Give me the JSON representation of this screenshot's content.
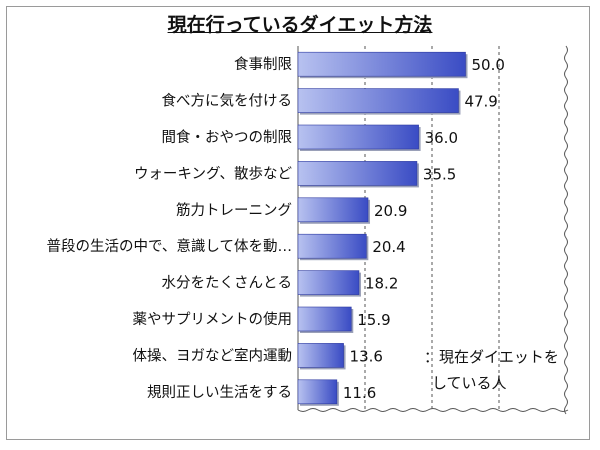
{
  "chart_data": {
    "type": "bar",
    "orientation": "horizontal",
    "title": "現在行っているダイエット方法",
    "categories": [
      "食事制限",
      "食べ方に気を付ける",
      "間食・おやつの制限",
      "ウォーキング、散歩など",
      "筋力トレーニング",
      "普段の生活の中で、意識して体を動…",
      "水分をたくさんとる",
      "薬やサプリメントの使用",
      "体操、ヨガなど室内運動",
      "規則正しい生活をする"
    ],
    "values": [
      50.0,
      47.9,
      36.0,
      35.5,
      20.9,
      20.4,
      18.2,
      15.9,
      13.6,
      11.6
    ],
    "value_labels": [
      "50.0",
      "47.9",
      "36.0",
      "35.5",
      "20.9",
      "20.4",
      "18.2",
      "15.9",
      "13.6",
      "11.6"
    ],
    "xlim": [
      0,
      80
    ],
    "gridlines": [
      20,
      40,
      60,
      80
    ],
    "grid": true,
    "axis_break": true,
    "colors": {
      "bar_light": "#b8c2f0",
      "bar_dark": "#3a4cc4",
      "grid": "#555555"
    },
    "legend": {
      "line1": "：現在ダイエットを",
      "line2": "している人",
      "placement": "bottom-right"
    }
  }
}
